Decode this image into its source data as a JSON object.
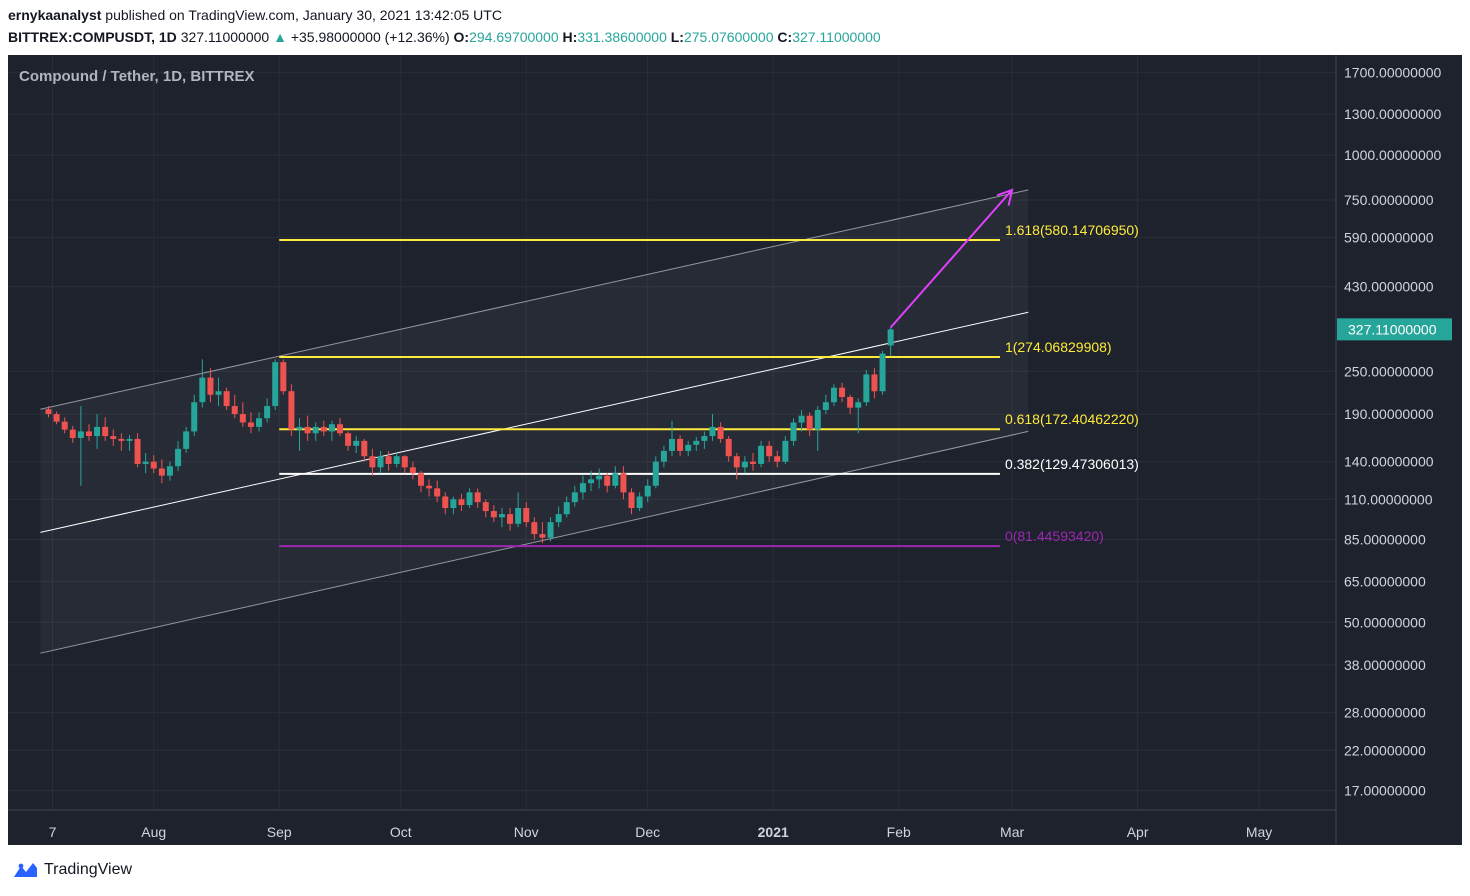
{
  "header": {
    "author": "ernykaanalyst",
    "published": "published on TradingView.com, January 30, 2021 13:42:05 UTC",
    "symbol": "BITTREX:COMPUSDT, 1D",
    "last": "327.11000000",
    "change": "+35.98000000 (+12.36%)",
    "o_label": "O:",
    "o": "294.69700000",
    "h_label": "H:",
    "h": "331.38600000",
    "l_label": "L:",
    "l": "275.07600000",
    "c_label": "C:",
    "c": "327.11000000"
  },
  "chart_title": "Compound / Tether, 1D, BITTREX",
  "colors": {
    "background": "#1e222d",
    "up": "#26a69a",
    "down": "#ef5350",
    "fib_yellow": "#ffeb3b",
    "fib_white": "#ffffff",
    "fib_purple": "#9c27b0",
    "arrow": "#e040fb",
    "channel": "#b2b5be",
    "axis_text": "#d1d4dc",
    "price_badge": "#26a69a"
  },
  "footer": {
    "brand": "TradingView",
    "icon": "tradingview-logo-icon"
  },
  "chart_data": {
    "type": "candlestick",
    "title": "Compound / Tether, 1D, BITTREX",
    "y_scale": "log",
    "ylim": [
      15,
      1900
    ],
    "x_range": [
      "2020-06-26",
      "2021-05-20"
    ],
    "y_ticks": [
      {
        "v": 1700,
        "label": "1700.00000000"
      },
      {
        "v": 1300,
        "label": "1300.00000000"
      },
      {
        "v": 1000,
        "label": "1000.00000000"
      },
      {
        "v": 750,
        "label": "750.00000000"
      },
      {
        "v": 590,
        "label": "590.00000000"
      },
      {
        "v": 430,
        "label": "430.00000000"
      },
      {
        "v": 250,
        "label": "250.00000000"
      },
      {
        "v": 190,
        "label": "190.00000000"
      },
      {
        "v": 140,
        "label": "140.00000000"
      },
      {
        "v": 110,
        "label": "110.00000000"
      },
      {
        "v": 85,
        "label": "85.00000000"
      },
      {
        "v": 65,
        "label": "65.00000000"
      },
      {
        "v": 50,
        "label": "50.00000000"
      },
      {
        "v": 38,
        "label": "38.00000000"
      },
      {
        "v": 28,
        "label": "28.00000000"
      },
      {
        "v": 22,
        "label": "22.00000000"
      },
      {
        "v": 17,
        "label": "17.00000000"
      }
    ],
    "x_ticks": [
      {
        "date": "2020-07-07",
        "label": "7"
      },
      {
        "date": "2020-08-01",
        "label": "Aug"
      },
      {
        "date": "2020-09-01",
        "label": "Sep"
      },
      {
        "date": "2020-10-01",
        "label": "Oct"
      },
      {
        "date": "2020-11-01",
        "label": "Nov"
      },
      {
        "date": "2020-12-01",
        "label": "Dec"
      },
      {
        "date": "2021-01-01",
        "label": "2021",
        "bold": true
      },
      {
        "date": "2021-02-01",
        "label": "Feb"
      },
      {
        "date": "2021-03-01",
        "label": "Mar"
      },
      {
        "date": "2021-04-01",
        "label": "Apr"
      },
      {
        "date": "2021-05-01",
        "label": "May"
      }
    ],
    "last_price": {
      "value": 327.11,
      "label": "327.11000000"
    },
    "fib_levels": [
      {
        "ratio": "1.618",
        "value": 580.1470695,
        "label": "1.618(580.14706950)",
        "color": "#ffeb3b",
        "start": "2020-09-01",
        "end": "2021-02-26"
      },
      {
        "ratio": "1",
        "value": 274.06829908,
        "label": "1(274.06829908)",
        "color": "#ffeb3b",
        "start": "2020-09-01",
        "end": "2021-02-26"
      },
      {
        "ratio": "0.618",
        "value": 172.4046222,
        "label": "0.618(172.40462220)",
        "color": "#ffeb3b",
        "start": "2020-09-01",
        "end": "2021-02-26"
      },
      {
        "ratio": "0.382",
        "value": 129.47306013,
        "label": "0.382(129.47306013)",
        "color": "#ffffff",
        "start": "2020-09-01",
        "end": "2021-02-26"
      },
      {
        "ratio": "0",
        "value": 81.4459342,
        "label": "0(81.44593420)",
        "color": "#9c27b0",
        "start": "2020-09-01",
        "end": "2021-02-26"
      }
    ],
    "channel": {
      "start": "2020-07-04",
      "end": "2021-03-05",
      "upper": [
        196,
        800
      ],
      "middle": [
        89,
        365
      ],
      "lower": [
        41,
        170
      ]
    },
    "arrow": {
      "from": {
        "date": "2021-01-30",
        "value": 331
      },
      "to": {
        "date": "2021-03-01",
        "value": 800
      }
    },
    "candles": [
      {
        "d": "2020-07-06",
        "o": 196,
        "h": 200,
        "l": 186,
        "c": 190
      },
      {
        "d": "2020-07-08",
        "o": 190,
        "h": 193,
        "l": 178,
        "c": 181
      },
      {
        "d": "2020-07-10",
        "o": 181,
        "h": 186,
        "l": 168,
        "c": 172
      },
      {
        "d": "2020-07-12",
        "o": 172,
        "h": 176,
        "l": 158,
        "c": 163
      },
      {
        "d": "2020-07-14",
        "o": 163,
        "h": 200,
        "l": 120,
        "c": 170
      },
      {
        "d": "2020-07-16",
        "o": 170,
        "h": 178,
        "l": 160,
        "c": 165
      },
      {
        "d": "2020-07-18",
        "o": 165,
        "h": 190,
        "l": 152,
        "c": 175
      },
      {
        "d": "2020-07-20",
        "o": 175,
        "h": 186,
        "l": 160,
        "c": 165
      },
      {
        "d": "2020-07-22",
        "o": 165,
        "h": 172,
        "l": 155,
        "c": 162
      },
      {
        "d": "2020-07-24",
        "o": 162,
        "h": 168,
        "l": 150,
        "c": 160
      },
      {
        "d": "2020-07-26",
        "o": 160,
        "h": 166,
        "l": 150,
        "c": 162
      },
      {
        "d": "2020-07-28",
        "o": 162,
        "h": 168,
        "l": 135,
        "c": 138
      },
      {
        "d": "2020-07-30",
        "o": 138,
        "h": 148,
        "l": 130,
        "c": 140
      },
      {
        "d": "2020-08-01",
        "o": 140,
        "h": 146,
        "l": 130,
        "c": 134
      },
      {
        "d": "2020-08-03",
        "o": 134,
        "h": 142,
        "l": 122,
        "c": 128
      },
      {
        "d": "2020-08-05",
        "o": 128,
        "h": 140,
        "l": 124,
        "c": 136
      },
      {
        "d": "2020-08-07",
        "o": 136,
        "h": 160,
        "l": 132,
        "c": 152
      },
      {
        "d": "2020-08-09",
        "o": 152,
        "h": 175,
        "l": 148,
        "c": 170
      },
      {
        "d": "2020-08-11",
        "o": 170,
        "h": 215,
        "l": 165,
        "c": 205
      },
      {
        "d": "2020-08-13",
        "o": 205,
        "h": 270,
        "l": 198,
        "c": 240
      },
      {
        "d": "2020-08-15",
        "o": 240,
        "h": 255,
        "l": 205,
        "c": 215
      },
      {
        "d": "2020-08-17",
        "o": 215,
        "h": 240,
        "l": 200,
        "c": 220
      },
      {
        "d": "2020-08-19",
        "o": 220,
        "h": 225,
        "l": 195,
        "c": 200
      },
      {
        "d": "2020-08-21",
        "o": 200,
        "h": 215,
        "l": 185,
        "c": 190
      },
      {
        "d": "2020-08-23",
        "o": 190,
        "h": 205,
        "l": 175,
        "c": 180
      },
      {
        "d": "2020-08-25",
        "o": 180,
        "h": 192,
        "l": 168,
        "c": 175
      },
      {
        "d": "2020-08-27",
        "o": 175,
        "h": 192,
        "l": 170,
        "c": 185
      },
      {
        "d": "2020-08-29",
        "o": 185,
        "h": 210,
        "l": 180,
        "c": 200
      },
      {
        "d": "2020-08-31",
        "o": 200,
        "h": 270,
        "l": 195,
        "c": 265
      },
      {
        "d": "2020-09-02",
        "o": 265,
        "h": 270,
        "l": 215,
        "c": 220
      },
      {
        "d": "2020-09-04",
        "o": 220,
        "h": 230,
        "l": 165,
        "c": 172
      },
      {
        "d": "2020-09-06",
        "o": 172,
        "h": 185,
        "l": 150,
        "c": 175
      },
      {
        "d": "2020-09-08",
        "o": 175,
        "h": 188,
        "l": 160,
        "c": 168
      },
      {
        "d": "2020-09-10",
        "o": 168,
        "h": 180,
        "l": 160,
        "c": 175
      },
      {
        "d": "2020-09-12",
        "o": 175,
        "h": 182,
        "l": 165,
        "c": 170
      },
      {
        "d": "2020-09-14",
        "o": 170,
        "h": 182,
        "l": 160,
        "c": 178
      },
      {
        "d": "2020-09-16",
        "o": 178,
        "h": 185,
        "l": 165,
        "c": 168
      },
      {
        "d": "2020-09-18",
        "o": 168,
        "h": 170,
        "l": 150,
        "c": 155
      },
      {
        "d": "2020-09-20",
        "o": 155,
        "h": 165,
        "l": 148,
        "c": 160
      },
      {
        "d": "2020-09-22",
        "o": 160,
        "h": 162,
        "l": 140,
        "c": 145
      },
      {
        "d": "2020-09-24",
        "o": 145,
        "h": 152,
        "l": 128,
        "c": 135
      },
      {
        "d": "2020-09-26",
        "o": 135,
        "h": 150,
        "l": 130,
        "c": 145
      },
      {
        "d": "2020-09-28",
        "o": 145,
        "h": 150,
        "l": 132,
        "c": 138
      },
      {
        "d": "2020-09-30",
        "o": 138,
        "h": 148,
        "l": 135,
        "c": 145
      },
      {
        "d": "2020-10-02",
        "o": 145,
        "h": 146,
        "l": 130,
        "c": 135
      },
      {
        "d": "2020-10-04",
        "o": 135,
        "h": 140,
        "l": 125,
        "c": 130
      },
      {
        "d": "2020-10-06",
        "o": 130,
        "h": 132,
        "l": 115,
        "c": 120
      },
      {
        "d": "2020-10-08",
        "o": 120,
        "h": 125,
        "l": 112,
        "c": 118
      },
      {
        "d": "2020-10-10",
        "o": 118,
        "h": 124,
        "l": 108,
        "c": 112
      },
      {
        "d": "2020-10-12",
        "o": 112,
        "h": 115,
        "l": 100,
        "c": 104
      },
      {
        "d": "2020-10-14",
        "o": 104,
        "h": 112,
        "l": 100,
        "c": 110
      },
      {
        "d": "2020-10-16",
        "o": 110,
        "h": 114,
        "l": 102,
        "c": 106
      },
      {
        "d": "2020-10-18",
        "o": 106,
        "h": 118,
        "l": 104,
        "c": 115
      },
      {
        "d": "2020-10-20",
        "o": 115,
        "h": 118,
        "l": 104,
        "c": 108
      },
      {
        "d": "2020-10-22",
        "o": 108,
        "h": 110,
        "l": 98,
        "c": 102
      },
      {
        "d": "2020-10-24",
        "o": 102,
        "h": 106,
        "l": 95,
        "c": 98
      },
      {
        "d": "2020-10-26",
        "o": 98,
        "h": 104,
        "l": 92,
        "c": 100
      },
      {
        "d": "2020-10-28",
        "o": 100,
        "h": 104,
        "l": 90,
        "c": 94
      },
      {
        "d": "2020-10-30",
        "o": 94,
        "h": 115,
        "l": 92,
        "c": 104
      },
      {
        "d": "2020-11-01",
        "o": 104,
        "h": 108,
        "l": 92,
        "c": 95
      },
      {
        "d": "2020-11-03",
        "o": 95,
        "h": 98,
        "l": 85,
        "c": 88
      },
      {
        "d": "2020-11-05",
        "o": 88,
        "h": 95,
        "l": 83,
        "c": 86
      },
      {
        "d": "2020-11-07",
        "o": 86,
        "h": 98,
        "l": 84,
        "c": 95
      },
      {
        "d": "2020-11-09",
        "o": 95,
        "h": 105,
        "l": 92,
        "c": 100
      },
      {
        "d": "2020-11-11",
        "o": 100,
        "h": 112,
        "l": 98,
        "c": 108
      },
      {
        "d": "2020-11-13",
        "o": 108,
        "h": 120,
        "l": 105,
        "c": 115
      },
      {
        "d": "2020-11-15",
        "o": 115,
        "h": 128,
        "l": 110,
        "c": 122
      },
      {
        "d": "2020-11-17",
        "o": 122,
        "h": 132,
        "l": 116,
        "c": 125
      },
      {
        "d": "2020-11-19",
        "o": 125,
        "h": 134,
        "l": 118,
        "c": 128
      },
      {
        "d": "2020-11-21",
        "o": 128,
        "h": 130,
        "l": 115,
        "c": 120
      },
      {
        "d": "2020-11-23",
        "o": 120,
        "h": 136,
        "l": 118,
        "c": 130
      },
      {
        "d": "2020-11-25",
        "o": 130,
        "h": 136,
        "l": 110,
        "c": 115
      },
      {
        "d": "2020-11-27",
        "o": 115,
        "h": 118,
        "l": 100,
        "c": 104
      },
      {
        "d": "2020-11-29",
        "o": 104,
        "h": 115,
        "l": 102,
        "c": 112
      },
      {
        "d": "2020-12-01",
        "o": 112,
        "h": 125,
        "l": 108,
        "c": 120
      },
      {
        "d": "2020-12-03",
        "o": 120,
        "h": 145,
        "l": 118,
        "c": 140
      },
      {
        "d": "2020-12-05",
        "o": 140,
        "h": 155,
        "l": 135,
        "c": 150
      },
      {
        "d": "2020-12-07",
        "o": 150,
        "h": 182,
        "l": 145,
        "c": 162
      },
      {
        "d": "2020-12-09",
        "o": 162,
        "h": 166,
        "l": 145,
        "c": 150
      },
      {
        "d": "2020-12-11",
        "o": 150,
        "h": 160,
        "l": 145,
        "c": 156
      },
      {
        "d": "2020-12-13",
        "o": 156,
        "h": 164,
        "l": 150,
        "c": 160
      },
      {
        "d": "2020-12-15",
        "o": 160,
        "h": 170,
        "l": 152,
        "c": 165
      },
      {
        "d": "2020-12-17",
        "o": 165,
        "h": 190,
        "l": 160,
        "c": 175
      },
      {
        "d": "2020-12-19",
        "o": 175,
        "h": 180,
        "l": 158,
        "c": 162
      },
      {
        "d": "2020-12-21",
        "o": 162,
        "h": 165,
        "l": 140,
        "c": 145
      },
      {
        "d": "2020-12-23",
        "o": 145,
        "h": 148,
        "l": 125,
        "c": 135
      },
      {
        "d": "2020-12-25",
        "o": 135,
        "h": 145,
        "l": 130,
        "c": 140
      },
      {
        "d": "2020-12-27",
        "o": 140,
        "h": 148,
        "l": 132,
        "c": 138
      },
      {
        "d": "2020-12-29",
        "o": 138,
        "h": 160,
        "l": 135,
        "c": 155
      },
      {
        "d": "2020-12-31",
        "o": 155,
        "h": 160,
        "l": 140,
        "c": 145
      },
      {
        "d": "2021-01-02",
        "o": 145,
        "h": 150,
        "l": 135,
        "c": 140
      },
      {
        "d": "2021-01-04",
        "o": 140,
        "h": 165,
        "l": 138,
        "c": 160
      },
      {
        "d": "2021-01-06",
        "o": 160,
        "h": 185,
        "l": 155,
        "c": 180
      },
      {
        "d": "2021-01-08",
        "o": 180,
        "h": 195,
        "l": 170,
        "c": 188
      },
      {
        "d": "2021-01-10",
        "o": 188,
        "h": 192,
        "l": 165,
        "c": 172
      },
      {
        "d": "2021-01-12",
        "o": 172,
        "h": 200,
        "l": 150,
        "c": 195
      },
      {
        "d": "2021-01-14",
        "o": 195,
        "h": 215,
        "l": 190,
        "c": 205
      },
      {
        "d": "2021-01-16",
        "o": 205,
        "h": 230,
        "l": 200,
        "c": 225
      },
      {
        "d": "2021-01-18",
        "o": 225,
        "h": 232,
        "l": 205,
        "c": 212
      },
      {
        "d": "2021-01-20",
        "o": 212,
        "h": 215,
        "l": 190,
        "c": 198
      },
      {
        "d": "2021-01-22",
        "o": 198,
        "h": 210,
        "l": 168,
        "c": 205
      },
      {
        "d": "2021-01-24",
        "o": 205,
        "h": 252,
        "l": 200,
        "c": 245
      },
      {
        "d": "2021-01-26",
        "o": 245,
        "h": 255,
        "l": 210,
        "c": 220
      },
      {
        "d": "2021-01-28",
        "o": 220,
        "h": 285,
        "l": 215,
        "c": 280
      },
      {
        "d": "2021-01-30",
        "o": 295,
        "h": 331,
        "l": 275,
        "c": 327
      }
    ]
  }
}
